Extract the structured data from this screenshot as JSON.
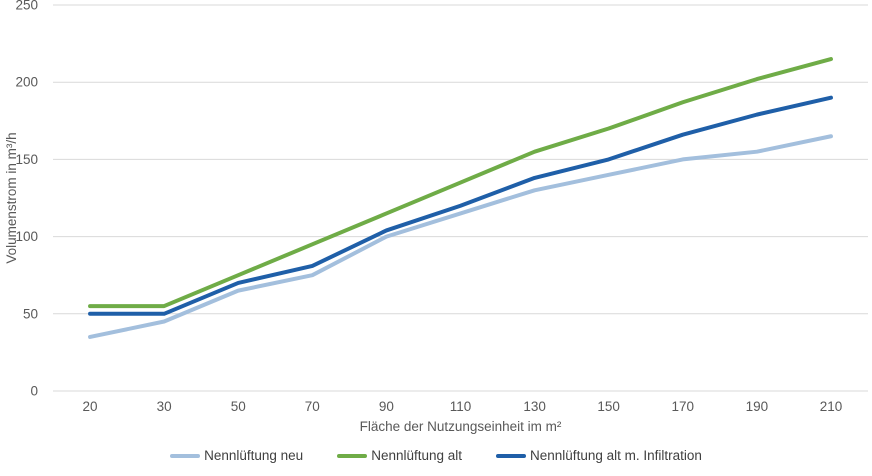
{
  "chart_data": {
    "type": "line",
    "title": "",
    "xlabel": "Fläche der Nutzungseinheit im m²",
    "ylabel": "Volumenstrom  in m³/h",
    "categories": [
      20,
      30,
      50,
      70,
      90,
      110,
      130,
      150,
      170,
      190,
      210
    ],
    "ylim": [
      0,
      250
    ],
    "ytick_step": 50,
    "yticks": [
      0,
      50,
      100,
      150,
      200,
      250
    ],
    "grid": "horizontal",
    "legend_position": "bottom",
    "series": [
      {
        "name": "Nennlüftung neu",
        "color": "#A3BFDD",
        "values": [
          35,
          45,
          65,
          75,
          100,
          115,
          130,
          140,
          150,
          155,
          165
        ]
      },
      {
        "name": "Nennlüftung alt",
        "color": "#6FAC47",
        "values": [
          55,
          55,
          75,
          95,
          115,
          135,
          155,
          170,
          187,
          202,
          215
        ]
      },
      {
        "name": "Nennlüftung alt m. Infiltration",
        "color": "#1F5FA8",
        "values": [
          50,
          50,
          70,
          81,
          104,
          120,
          138,
          150,
          166,
          179,
          190
        ]
      }
    ]
  },
  "colors": {
    "grid": "#D9D9D9",
    "axis_text": "#595959",
    "background": "#FFFFFF"
  }
}
